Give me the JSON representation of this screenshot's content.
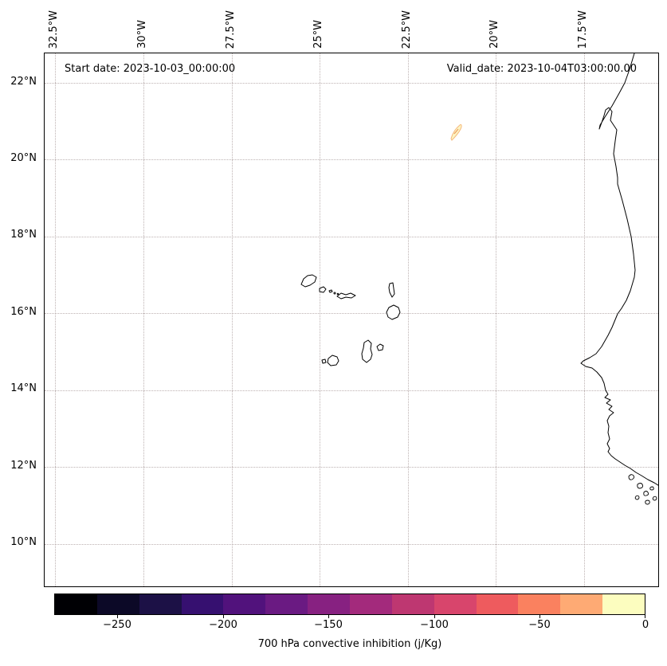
{
  "chart_data": {
    "type": "heatmap",
    "variant": "filled-contour geographic map",
    "annotations": {
      "start_date": "Start date: 2023-10-03_00:00:00",
      "valid_date": "Valid_date: 2023-10-04T03:00:00.00"
    },
    "x_axis": {
      "tick_labels": [
        "32.5°W",
        "30°W",
        "27.5°W",
        "25°W",
        "22.5°W",
        "20°W",
        "17.5°W"
      ],
      "tick_rotation_deg": 90
    },
    "y_axis": {
      "tick_labels": [
        "22°N",
        "20°N",
        "18°N",
        "16°N",
        "14°N",
        "12°N",
        "10°N"
      ]
    },
    "map_extent": {
      "lon": [
        -32.8,
        -15.3
      ],
      "lat": [
        8.9,
        22.8
      ]
    },
    "grid_style": "dotted",
    "geography": [
      "Cape Verde archipelago",
      "West African coastline"
    ],
    "colorbar": {
      "label": "700 hPa convective inhibition (j/Kg)",
      "orientation": "horizontal",
      "tick_labels": [
        "−250",
        "−200",
        "−150",
        "−100",
        "−50",
        "0"
      ],
      "levels": [
        -280,
        -260,
        -240,
        -220,
        -200,
        -180,
        -160,
        -140,
        -120,
        -100,
        -80,
        -60,
        -40,
        -20,
        0
      ],
      "colormap": "magma",
      "colors": [
        "#000004",
        "#0c0927",
        "#1c1146",
        "#361070",
        "#51127c",
        "#6a1a82",
        "#872181",
        "#a32a7c",
        "#be3771",
        "#d8456c",
        "#ee5b5e",
        "#fa815f",
        "#feaa74",
        "#fcfdbf"
      ]
    },
    "plotted_features": [
      {
        "name": "weak-cin-patch",
        "lon": -21.1,
        "lat": 20.7,
        "approx_value_jkg": "-20 to 0",
        "fill": "#fcf5c4"
      }
    ]
  }
}
